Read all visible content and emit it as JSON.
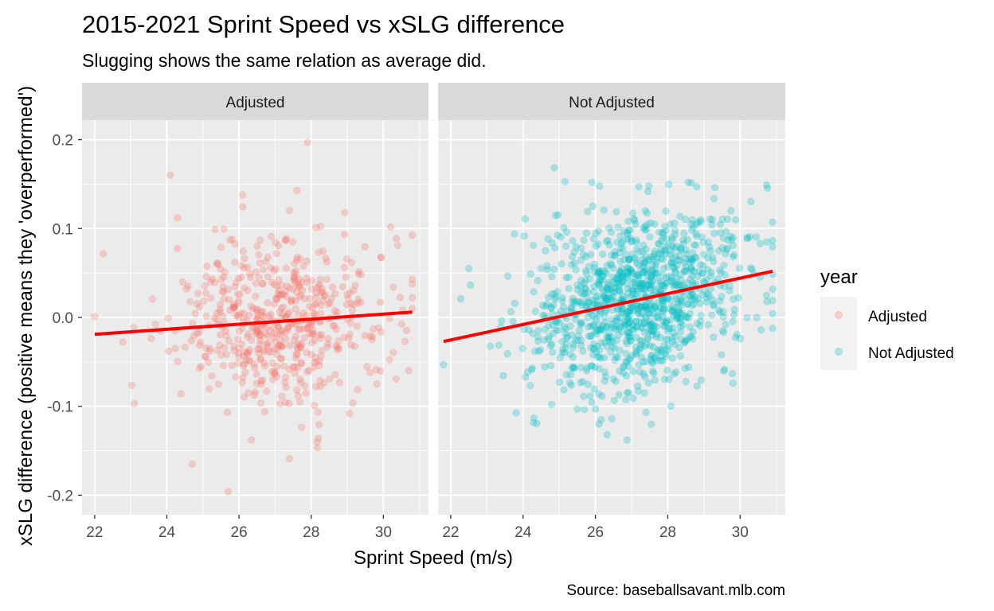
{
  "chart_data": {
    "type": "scatter",
    "title": "2015-2021 Sprint Speed vs xSLG difference",
    "subtitle": "Slugging shows the same relation as average did.",
    "xlabel": "Sprint Speed (m/s)",
    "ylabel": "xSLG difference (positive means they 'overperformed')",
    "caption": "Source: baseballsavant.mlb.com",
    "x_ticks": [
      22,
      24,
      26,
      28,
      30
    ],
    "y_ticks": [
      -0.2,
      -0.1,
      0.0,
      0.1,
      0.2
    ],
    "y_tick_labels": [
      "-0.2",
      "-0.1",
      "0.0",
      "0.1",
      "0.2"
    ],
    "xlim": [
      21.65,
      31.25
    ],
    "ylim": [
      -0.222,
      0.222
    ],
    "grid": true,
    "legend": {
      "title": "year",
      "position": "right",
      "entries": [
        {
          "label": "Adjusted",
          "color": "#F8766D"
        },
        {
          "label": "Not Adjusted",
          "color": "#00BFC4"
        }
      ]
    },
    "facets": [
      {
        "label": "Adjusted",
        "color": "#F8766D",
        "n_points": 560,
        "x_range": [
          22.0,
          30.8
        ],
        "fit_line": {
          "x": [
            22.0,
            30.8
          ],
          "y": [
            -0.019,
            0.006
          ]
        },
        "highlight_points": [
          {
            "x": 27.9,
            "y": 0.197
          },
          {
            "x": 24.1,
            "y": 0.16
          },
          {
            "x": 27.6,
            "y": 0.143
          },
          {
            "x": 26.1,
            "y": 0.138
          },
          {
            "x": 24.3,
            "y": 0.112
          },
          {
            "x": 30.2,
            "y": 0.102
          },
          {
            "x": 22.0,
            "y": 0.001
          },
          {
            "x": 23.1,
            "y": -0.097
          },
          {
            "x": 24.7,
            "y": -0.165
          },
          {
            "x": 25.7,
            "y": -0.196
          },
          {
            "x": 27.4,
            "y": -0.159
          },
          {
            "x": 28.2,
            "y": -0.136
          },
          {
            "x": 30.7,
            "y": -0.06
          },
          {
            "x": 30.8,
            "y": 0.01
          }
        ]
      },
      {
        "label": "Not Adjusted",
        "color": "#00BFC4",
        "n_points": 1100,
        "x_range": [
          21.8,
          30.9
        ],
        "fit_line": {
          "x": [
            21.8,
            30.9
          ],
          "y": [
            -0.027,
            0.052
          ]
        },
        "highlight_points": [
          {
            "x": 21.8,
            "y": -0.053
          },
          {
            "x": 22.5,
            "y": 0.055
          },
          {
            "x": 24.3,
            "y": -0.113
          },
          {
            "x": 25.5,
            "y": -0.103
          },
          {
            "x": 25.9,
            "y": 0.152
          },
          {
            "x": 27.2,
            "y": 0.147
          },
          {
            "x": 28.8,
            "y": 0.147
          },
          {
            "x": 30.9,
            "y": 0.107
          },
          {
            "x": 30.2,
            "y": 0.09
          },
          {
            "x": 26.1,
            "y": -0.12
          },
          {
            "x": 29.6,
            "y": -0.008
          },
          {
            "x": 24.9,
            "y": 0.115
          }
        ]
      }
    ]
  }
}
